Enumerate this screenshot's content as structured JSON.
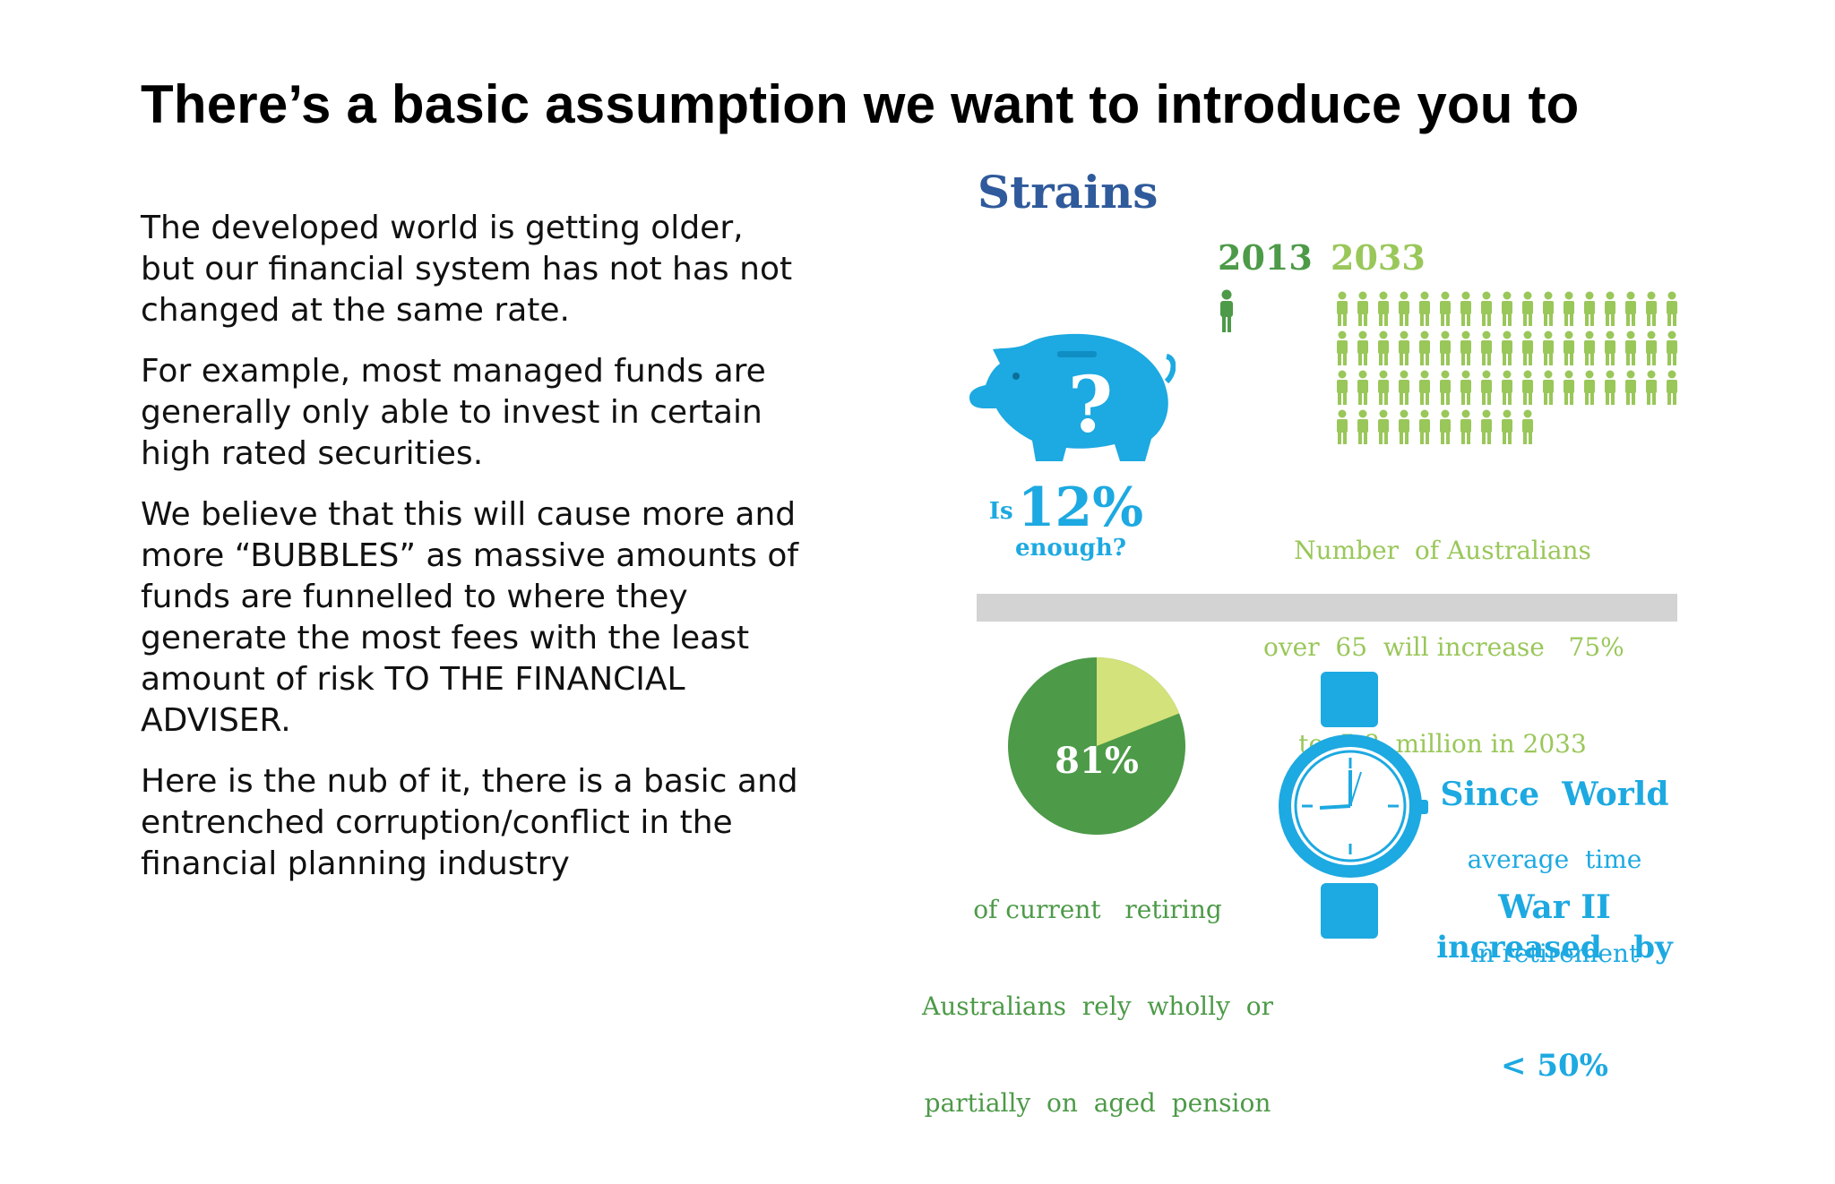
{
  "slide": {
    "title": "There’s a basic assumption we want to introduce you to",
    "paragraphs": [
      "The developed world is getting older, but our financial system has not has not changed at the same rate.",
      "For example, most managed funds are generally only able to invest in certain high rated securities.",
      "We believe that this will cause more and more “BUBBLES” as massive amounts of funds are funnelled to where they generate the most fees with the least amount of risk TO THE FINANCIAL ADVISER.",
      "Here is the nub of it, there is a basic and entrenched corruption/conflict in the financial planning industry"
    ]
  },
  "infographic": {
    "heading": "Strains",
    "colors": {
      "navy": "#2f5a9b",
      "blue": "#1da9e1",
      "dark_green": "#4d9a48",
      "light_green": "#9ac75a",
      "pale_green": "#d3e27a",
      "grey_bar": "#d3d3d3"
    },
    "piggy": {
      "icon": "piggy-bank-icon",
      "symbol": "?",
      "prefix": "Is",
      "value": "12%",
      "suffix": "enough?"
    },
    "population": {
      "year_a": "2013",
      "year_b": "2033",
      "count_a": 1,
      "count_b": 61,
      "caption": [
        "Number  of Australians",
        "over  65  will increase   75%",
        "to  5.8  million in 2033"
      ]
    },
    "pension": {
      "percent_label": "81%",
      "percent": 81,
      "caption": [
        "of current   retiring",
        "Australians  rely  wholly  or",
        "partially  on  aged  pension"
      ]
    },
    "retirement": {
      "icon": "wristwatch-icon",
      "heading": [
        "Since  World",
        "War II"
      ],
      "sub": [
        "average  time",
        "in retirement"
      ],
      "emphasis": [
        "increased   by",
        "< 50%"
      ]
    }
  }
}
